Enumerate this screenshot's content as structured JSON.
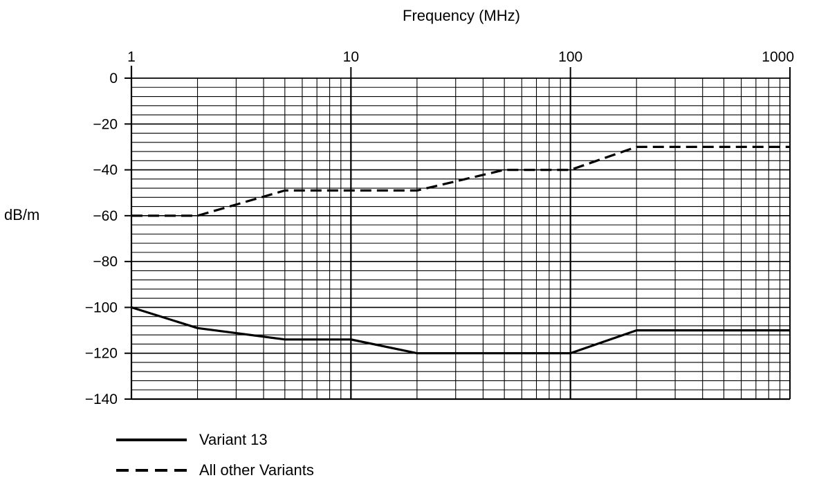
{
  "chart_data": {
    "type": "line",
    "title": "",
    "xlabel": "Frequency (MHz)",
    "ylabel": "dB/m",
    "x_scale": "log",
    "xlim": [
      1,
      1000
    ],
    "ylim": [
      -140,
      0
    ],
    "x_ticks": [
      "1",
      "10",
      "100",
      "1000"
    ],
    "y_ticks": [
      "0",
      "−20",
      "−40",
      "−60",
      "−80",
      "−100",
      "−120",
      "−140"
    ],
    "grid": true,
    "series": [
      {
        "name": "Variant 13",
        "style": "solid",
        "color": "#000000",
        "points": [
          [
            1,
            -100
          ],
          [
            2,
            -109
          ],
          [
            5,
            -114
          ],
          [
            10,
            -114
          ],
          [
            20,
            -120
          ],
          [
            100,
            -120
          ],
          [
            200,
            -110
          ],
          [
            1000,
            -110
          ]
        ]
      },
      {
        "name": "All other Variants",
        "style": "dashed",
        "color": "#000000",
        "points": [
          [
            1,
            -60
          ],
          [
            2,
            -60
          ],
          [
            5,
            -49
          ],
          [
            20,
            -49
          ],
          [
            50,
            -40
          ],
          [
            100,
            -40
          ],
          [
            200,
            -30
          ],
          [
            1000,
            -30
          ]
        ]
      }
    ],
    "legend": "bottom-left"
  }
}
